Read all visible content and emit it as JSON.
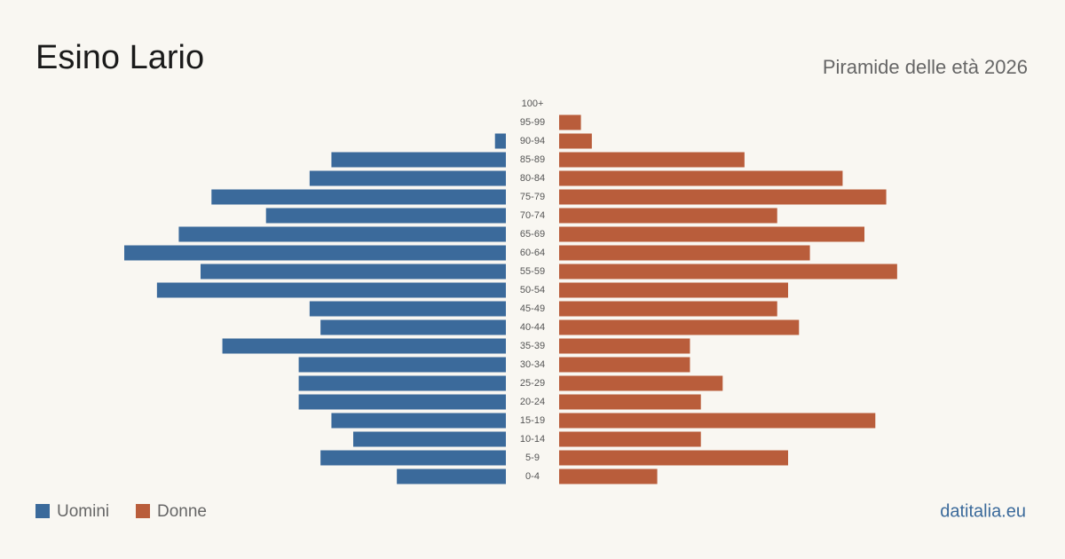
{
  "chart_data": {
    "type": "pyramid",
    "title": "Esino Lario",
    "subtitle": "Piramide delle età 2026",
    "source": "datitalia.eu",
    "categories": [
      "0-4",
      "5-9",
      "10-14",
      "15-19",
      "20-24",
      "25-29",
      "30-34",
      "35-39",
      "40-44",
      "45-49",
      "50-54",
      "55-59",
      "60-64",
      "65-69",
      "70-74",
      "75-79",
      "80-84",
      "85-89",
      "90-94",
      "95-99",
      "100+"
    ],
    "xlim": [
      0,
      35
    ],
    "series": [
      {
        "name": "Uomini",
        "color": "#3b6a9b",
        "values": [
          10,
          17,
          14,
          16,
          19,
          19,
          19,
          26,
          17,
          18,
          32,
          28,
          35,
          30,
          22,
          27,
          18,
          16,
          1,
          0,
          0
        ]
      },
      {
        "name": "Donne",
        "color": "#b95d3b",
        "values": [
          9,
          21,
          13,
          29,
          13,
          15,
          12,
          12,
          22,
          20,
          21,
          31,
          23,
          28,
          20,
          30,
          26,
          17,
          3,
          2,
          0
        ]
      }
    ]
  }
}
